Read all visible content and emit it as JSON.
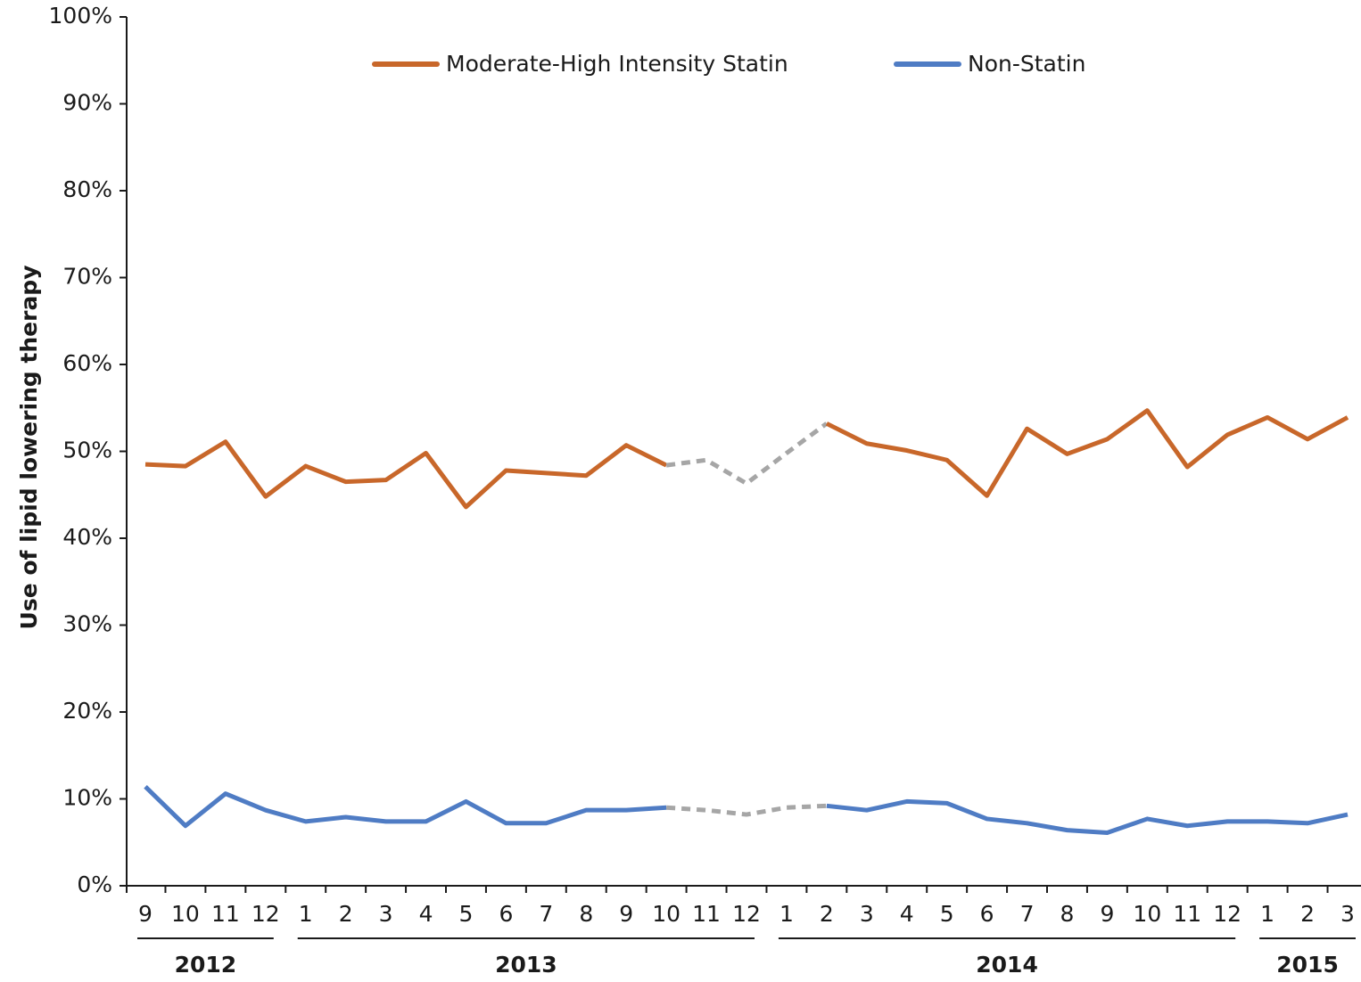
{
  "chart_data": {
    "type": "line",
    "ylabel": "Use of lipid lowering therapy",
    "groups": [
      {
        "label": "2012",
        "categories": [
          "9",
          "10",
          "11",
          "12"
        ]
      },
      {
        "label": "2013",
        "categories": [
          "1",
          "2",
          "3",
          "4",
          "5",
          "6",
          "7",
          "8",
          "9",
          "10",
          "11",
          "12"
        ]
      },
      {
        "label": "2014",
        "categories": [
          "1",
          "2",
          "3",
          "4",
          "5",
          "6",
          "7",
          "8",
          "9",
          "10",
          "11",
          "12"
        ]
      },
      {
        "label": "2015",
        "categories": [
          "1",
          "2",
          "3"
        ]
      }
    ],
    "series": [
      {
        "name": "Moderate-High Intensity Statin",
        "color": "#c8672a",
        "values": [
          48.5,
          48.3,
          51.1,
          44.8,
          48.3,
          46.5,
          46.7,
          49.8,
          43.6,
          47.8,
          47.5,
          47.2,
          50.7,
          48.4,
          49.0,
          46.3,
          49.8,
          53.2,
          50.9,
          50.1,
          49.0,
          44.9,
          52.6,
          49.7,
          51.4,
          54.7,
          48.2,
          51.9,
          53.9,
          51.4,
          53.9
        ]
      },
      {
        "name": "Non-Statin",
        "color": "#4f7cc4",
        "values": [
          11.4,
          6.9,
          10.6,
          8.7,
          7.4,
          7.9,
          7.4,
          7.4,
          9.7,
          7.2,
          7.2,
          8.7,
          8.7,
          9.0,
          8.7,
          8.2,
          9.0,
          9.2,
          8.7,
          9.7,
          9.5,
          7.7,
          7.2,
          6.4,
          6.1,
          7.7,
          6.9,
          7.4,
          7.4,
          7.2,
          8.2
        ]
      }
    ],
    "dashed_segment": {
      "from": 13,
      "to": 17,
      "color": "#a6a6a6"
    },
    "ylim": [
      0,
      100
    ],
    "yticks": [
      {
        "value": 0,
        "label": "0%"
      },
      {
        "value": 10,
        "label": "10%"
      },
      {
        "value": 20,
        "label": "20%"
      },
      {
        "value": 30,
        "label": "30%"
      },
      {
        "value": 40,
        "label": "40%"
      },
      {
        "value": 50,
        "label": "50%"
      },
      {
        "value": 60,
        "label": "60%"
      },
      {
        "value": 70,
        "label": "70%"
      },
      {
        "value": 80,
        "label": "80%"
      },
      {
        "value": 90,
        "label": "90%"
      },
      {
        "value": 100,
        "label": "100%"
      }
    ],
    "legend": "top"
  }
}
